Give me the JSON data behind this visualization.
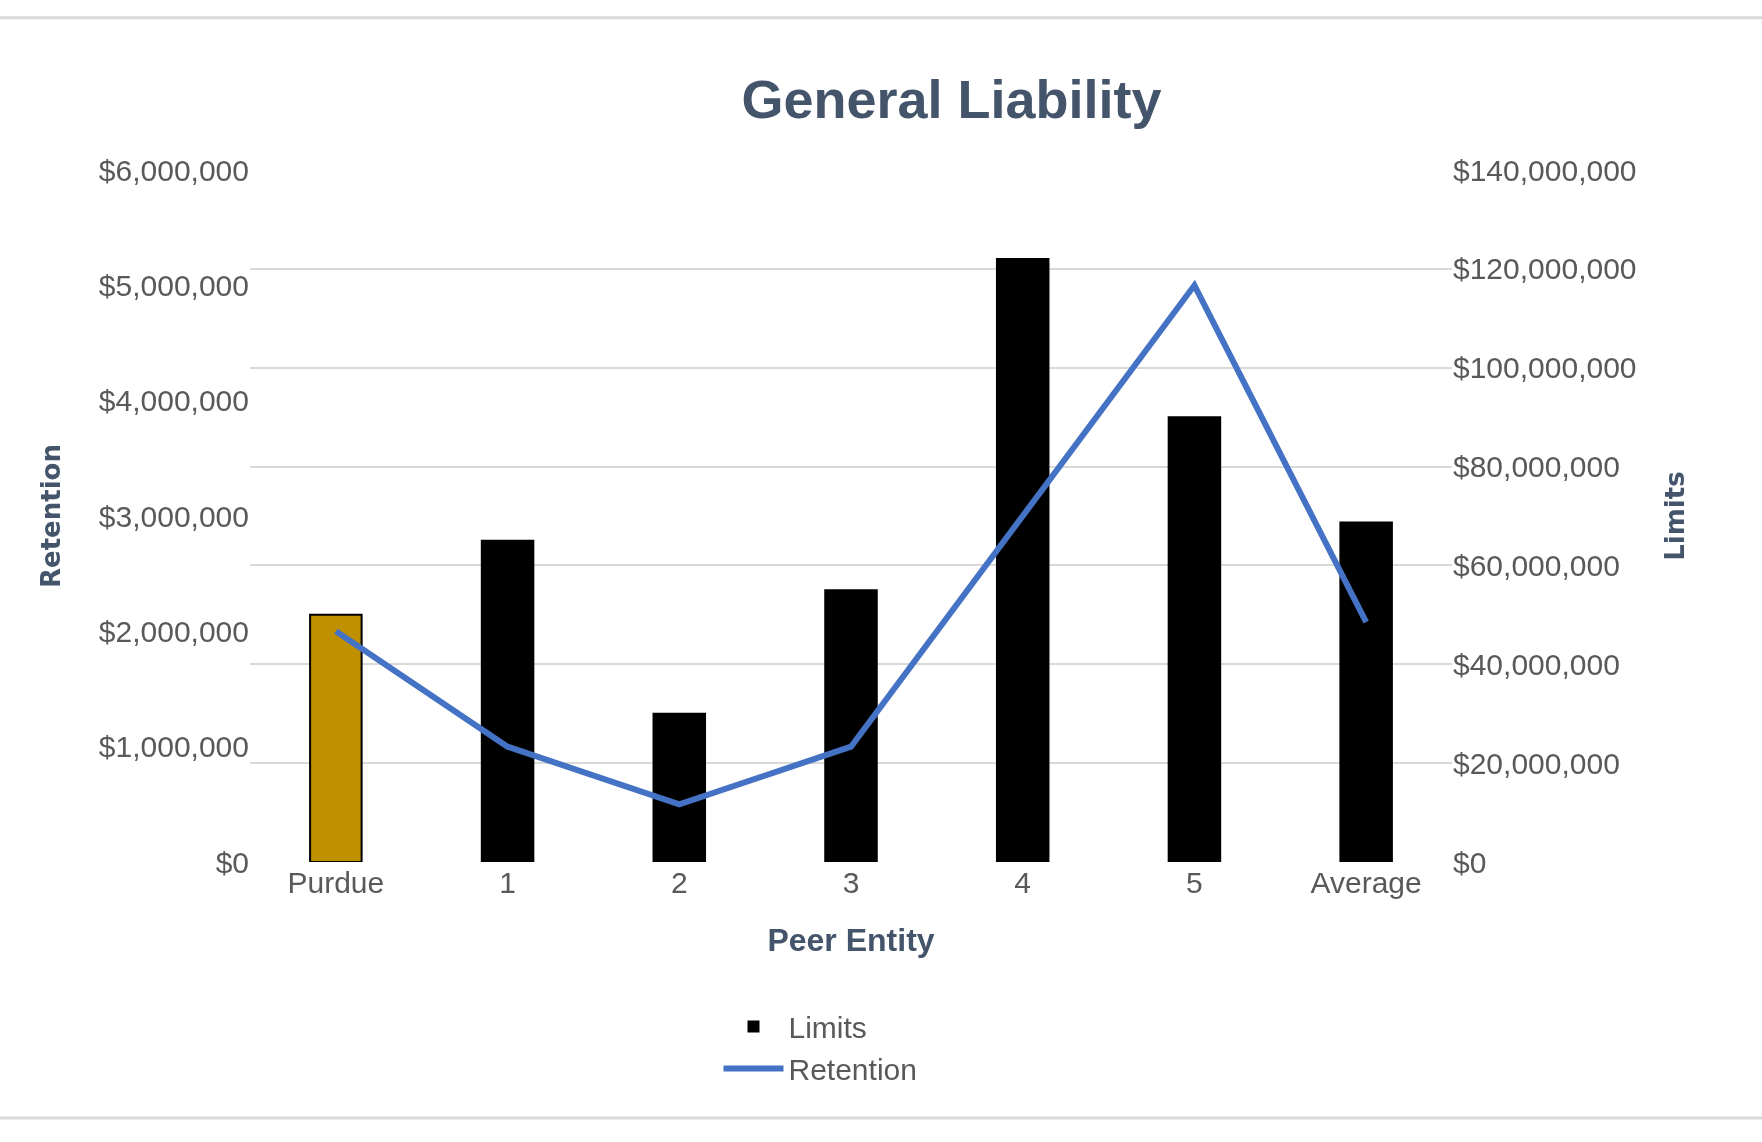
{
  "chart_data": {
    "type": "bar",
    "title": "General Liability",
    "xlabel": "Peer Entity",
    "ylabel": "Retention",
    "y2label": "Limits",
    "categories": [
      "Purdue",
      "1",
      "2",
      "3",
      "4",
      "5",
      "Average"
    ],
    "series": [
      {
        "name": "Limits",
        "axis": "y2",
        "color": "#000000",
        "colors": [
          "#bf9000",
          "#000000",
          "#000000",
          "#000000",
          "#000000",
          "#000000",
          "#000000"
        ],
        "values": [
          50000000,
          65000000,
          30000000,
          55000000,
          122000000,
          90000000,
          68700000
        ]
      },
      {
        "name": "Retention",
        "type": "line",
        "color": "#4472c4",
        "values": [
          2000000,
          1000000,
          500000,
          1000000,
          3000000,
          5000000,
          2080000
        ]
      }
    ],
    "ylim": [
      0,
      6000000
    ],
    "yticks": [
      {
        "value": 0,
        "label": "$0"
      },
      {
        "value": 1000000,
        "label": "$1,000,000"
      },
      {
        "value": 2000000,
        "label": "$2,000,000"
      },
      {
        "value": 3000000,
        "label": "$3,000,000"
      },
      {
        "value": 4000000,
        "label": "$4,000,000"
      },
      {
        "value": 5000000,
        "label": "$5,000,000"
      },
      {
        "value": 6000000,
        "label": "$6,000,000"
      }
    ],
    "y2lim": [
      0,
      140000000
    ],
    "y2ticks": [
      {
        "value": 0,
        "label": "$0"
      },
      {
        "value": 20000000,
        "label": "$20,000,000"
      },
      {
        "value": 40000000,
        "label": "$40,000,000"
      },
      {
        "value": 60000000,
        "label": "$60,000,000"
      },
      {
        "value": 80000000,
        "label": "$80,000,000"
      },
      {
        "value": 100000000,
        "label": "$100,000,000"
      },
      {
        "value": 120000000,
        "label": "$120,000,000"
      },
      {
        "value": 140000000,
        "label": "$140,000,000"
      }
    ],
    "grid": "y",
    "legend": "bottom",
    "marker": "none",
    "line_style": "solid"
  }
}
